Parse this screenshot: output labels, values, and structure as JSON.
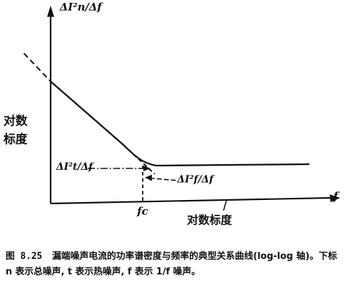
{
  "figure": {
    "y_axis_label": "ΔI²n/Δf",
    "x_axis_label": "f",
    "y_scale_label_line1": "对数",
    "y_scale_label_line2": "标度",
    "x_scale_label": "对数标度",
    "thermal_noise_label": "ΔI²t/Δf",
    "flicker_noise_label": "ΔI²f/Δf",
    "corner_frequency_label": "fc"
  },
  "caption": {
    "number": "图 8.25",
    "text": "漏端噪声电流的功率谱密度与频率的典型关系曲线(log-log 轴)。下标 n 表示总噪声, t 表示热噪声, f 表示 1/f 噪声。"
  }
}
